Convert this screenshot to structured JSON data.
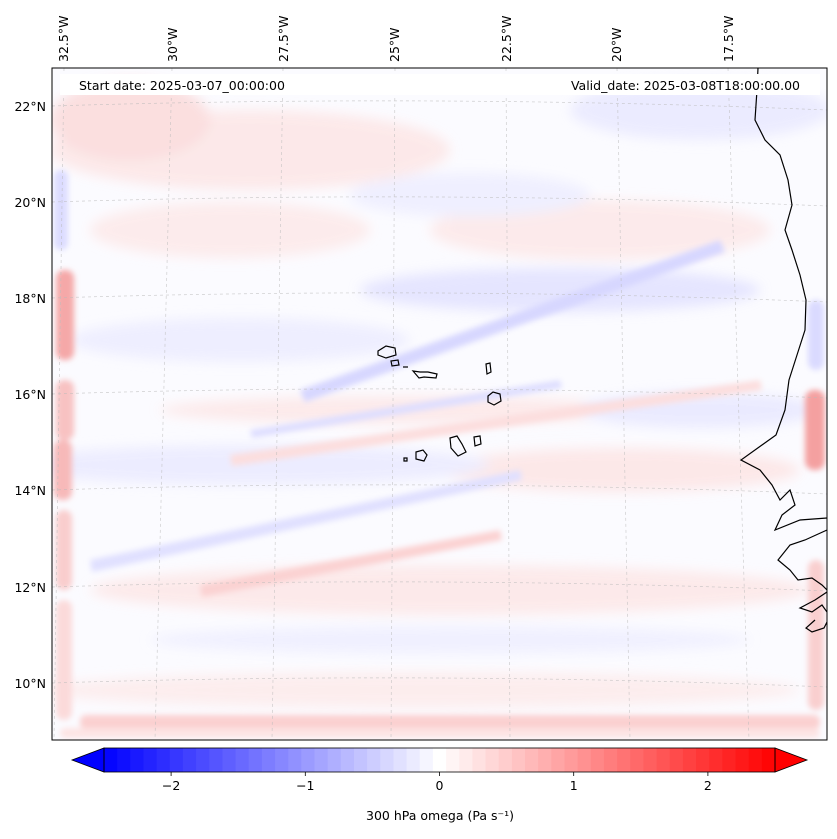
{
  "map": {
    "start_date": "Start date: 2025-03-07_00:00:00",
    "valid_date": "Valid_date: 2025-03-08T18:00:00.00",
    "lon_labels": [
      "32.5°W",
      "30°W",
      "27.5°W",
      "25°W",
      "22.5°W",
      "20°W",
      "17.5°W"
    ],
    "lat_labels": [
      "22°N",
      "20°N",
      "18°N",
      "16°N",
      "14°N",
      "12°N",
      "10°N"
    ],
    "extent": {
      "lon_min": -32.8,
      "lon_max": -15.1,
      "lat_min": 8.9,
      "lat_max": 22.8
    },
    "colors": {
      "negative": "#0000ff",
      "positive": "#ff0000",
      "neutral": "#ffffff",
      "coastline": "#000000"
    }
  },
  "colorbar": {
    "label": "300 hPa omega (Pa s⁻¹)",
    "ticks": [
      "−2",
      "−1",
      "0",
      "1",
      "2"
    ],
    "tick_values": [
      -2,
      -1,
      0,
      1,
      2
    ],
    "range": [
      -2.5,
      2.5
    ],
    "levels": 51
  }
}
